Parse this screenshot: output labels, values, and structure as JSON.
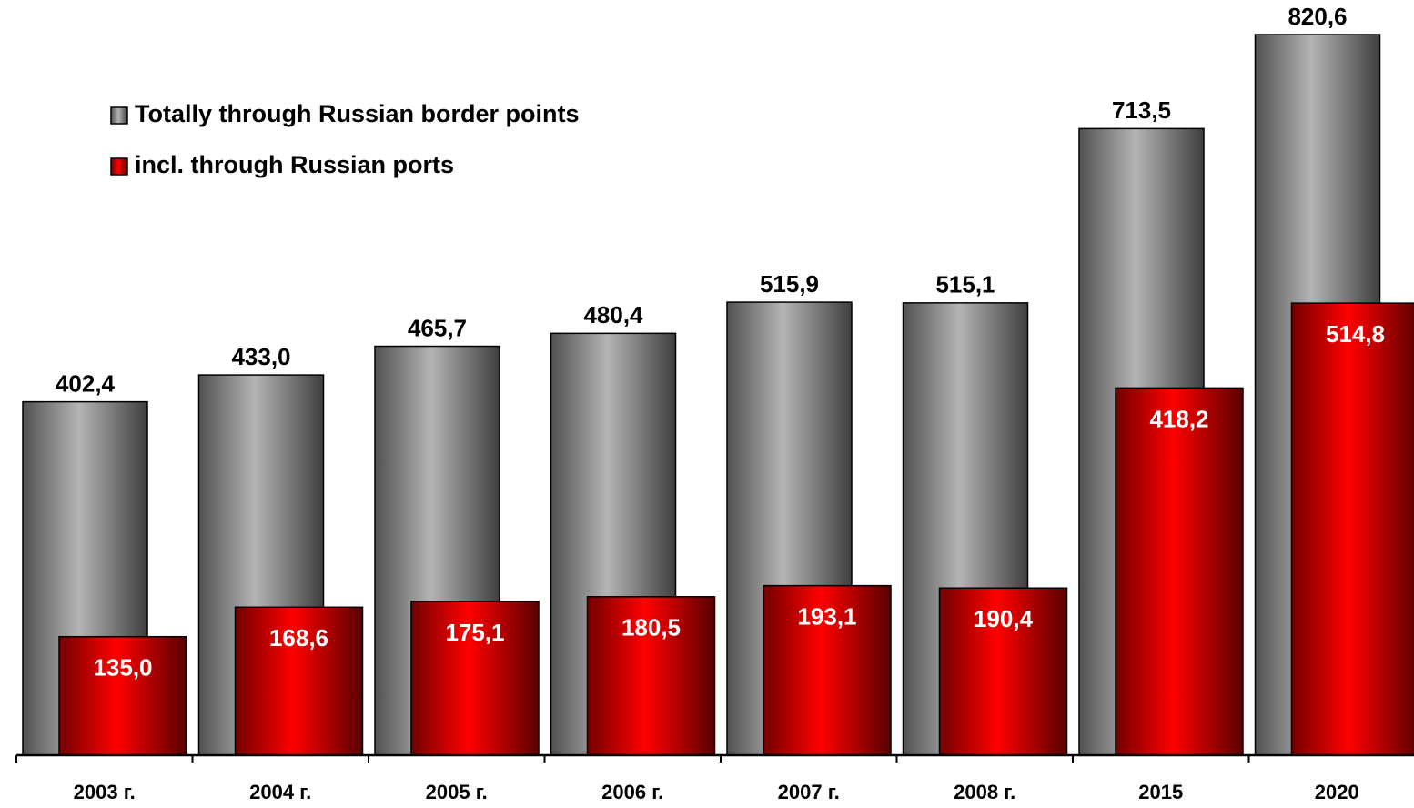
{
  "chart_data": {
    "type": "bar",
    "categories": [
      "2003 г.",
      "2004 г.",
      "2005 г.",
      "2006 г.",
      "2007 г.",
      "2008 г.",
      "2015",
      "2020"
    ],
    "series": [
      {
        "name": "Totally through Russian border points",
        "color": "#b4b4b4",
        "values": [
          402.4,
          433.0,
          465.7,
          480.4,
          515.9,
          515.1,
          713.5,
          820.6
        ],
        "value_labels": [
          "402,4",
          "433,0",
          "465,7",
          "480,4",
          "515,9",
          "515,1",
          "713,5",
          "820,6"
        ]
      },
      {
        "name": "incl. through Russian ports",
        "color": "#ff0000",
        "values": [
          135.0,
          168.6,
          175.1,
          180.5,
          193.1,
          190.4,
          418.2,
          514.8
        ],
        "value_labels": [
          "135,0",
          "168,6",
          "175,1",
          "180,5",
          "193,1",
          "190,4",
          "418,2",
          "514,8"
        ]
      }
    ]
  }
}
